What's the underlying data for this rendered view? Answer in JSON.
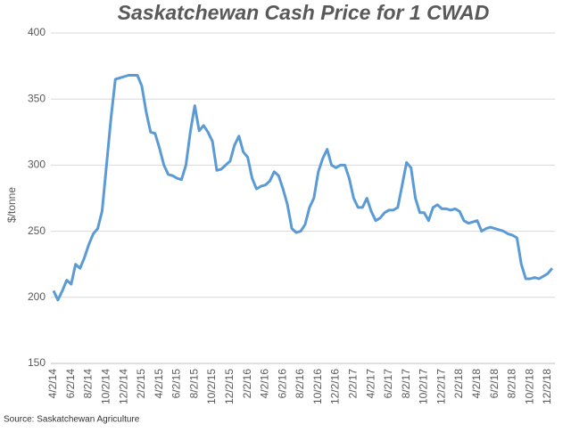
{
  "chart_data": {
    "type": "line",
    "title": "Saskatchewan Cash Price for 1 CWAD",
    "y_label": "$/tonne",
    "source": "Source: Saskatchewan Agriculture",
    "categories": [
      "4/2/14",
      null,
      null,
      null,
      "6/2/14",
      null,
      null,
      null,
      "8/2/14",
      null,
      null,
      null,
      "10/2/14",
      null,
      null,
      null,
      "12/2/14",
      null,
      null,
      null,
      "2/2/15",
      null,
      null,
      null,
      "4/2/15",
      null,
      null,
      null,
      "6/2/15",
      null,
      null,
      null,
      "8/2/15",
      null,
      null,
      null,
      "10/2/15",
      null,
      null,
      null,
      "12/2/15",
      null,
      null,
      null,
      "2/2/16",
      null,
      null,
      null,
      "4/2/16",
      null,
      null,
      null,
      "6/2/16",
      null,
      null,
      null,
      "8/2/16",
      null,
      null,
      null,
      "10/2/16",
      null,
      null,
      null,
      "12/2/16",
      null,
      null,
      null,
      "2/2/17",
      null,
      null,
      null,
      "4/2/17",
      null,
      null,
      null,
      "6/2/17",
      null,
      null,
      null,
      "8/2/17",
      null,
      null,
      null,
      "10/2/17",
      null,
      null,
      null,
      "12/2/17",
      null,
      null,
      null,
      "2/2/18",
      null,
      null,
      null,
      "4/2/18",
      null,
      null,
      null,
      "6/2/18",
      null,
      null,
      null,
      "8/2/18",
      null,
      null,
      null,
      "10/2/18",
      null,
      null,
      null,
      "12/2/18",
      null
    ],
    "series": [
      {
        "name": "Saskatchewan Cash Price for 1 CWAD",
        "color": "#5b9bd5",
        "values": [
          205,
          198,
          205,
          213,
          210,
          225,
          222,
          230,
          240,
          248,
          252,
          265,
          300,
          335,
          365,
          366,
          367,
          368,
          368,
          368,
          360,
          340,
          325,
          324,
          313,
          300,
          293,
          292,
          290,
          289,
          300,
          325,
          345,
          326,
          330,
          325,
          318,
          296,
          297,
          300,
          303,
          315,
          322,
          310,
          306,
          290,
          282,
          284,
          285,
          288,
          295,
          292,
          282,
          270,
          252,
          249,
          250,
          255,
          268,
          275,
          295,
          305,
          312,
          300,
          298,
          300,
          300,
          290,
          275,
          268,
          268,
          275,
          265,
          258,
          260,
          264,
          266,
          266,
          268,
          285,
          302,
          298,
          275,
          264,
          264,
          258,
          268,
          270,
          267,
          267,
          266,
          267,
          265,
          258,
          256,
          257,
          258,
          250,
          252,
          253,
          252,
          251,
          250,
          248,
          247,
          245,
          225,
          214,
          214,
          215,
          214,
          216,
          218,
          222
        ]
      }
    ],
    "ylim": [
      150,
      400
    ],
    "yticks": [
      150,
      200,
      250,
      300,
      350,
      400
    ],
    "grid": true
  }
}
